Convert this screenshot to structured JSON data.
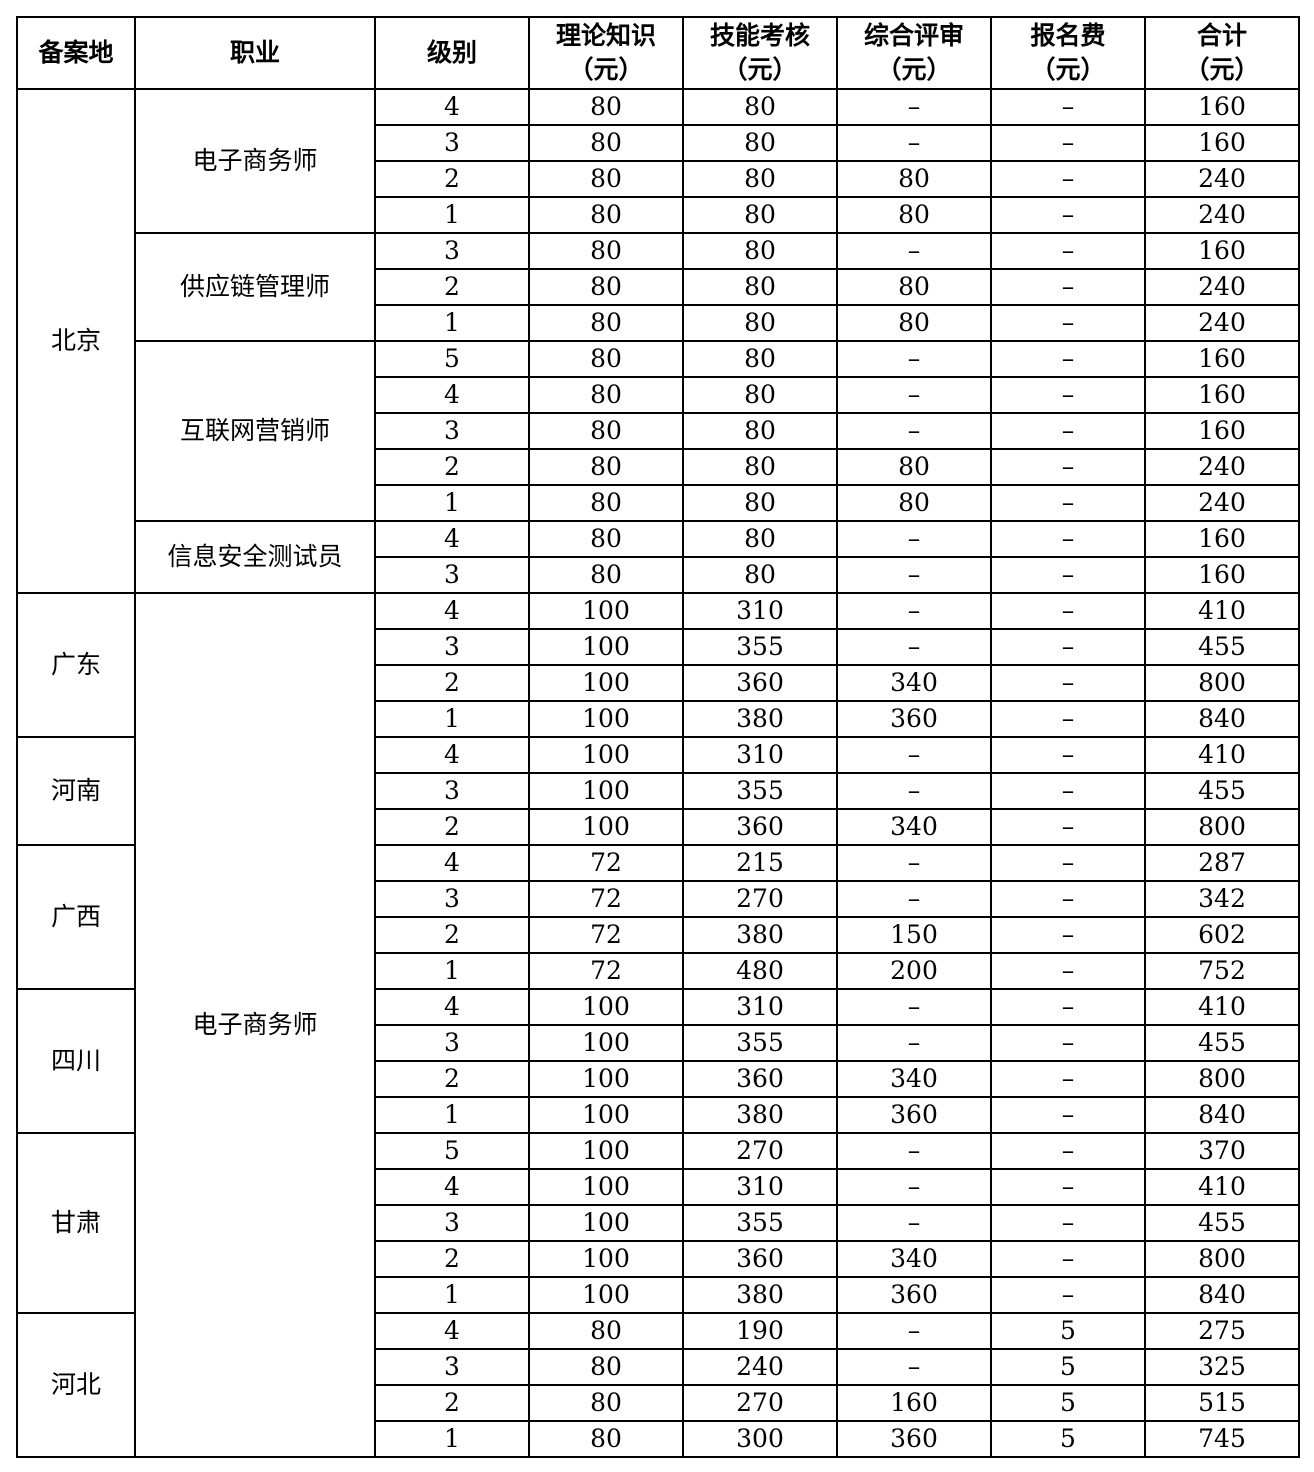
{
  "table": {
    "headers": [
      [
        "备案地"
      ],
      [
        "职业"
      ],
      [
        "级别"
      ],
      [
        "理论知识",
        "（元）"
      ],
      [
        "技能考核",
        "（元）"
      ],
      [
        "综合评审",
        "（元）"
      ],
      [
        "报名费",
        "（元）"
      ],
      [
        "合计",
        "（元）"
      ]
    ],
    "rows": [
      [
        "北京",
        "电子商务师",
        "4",
        "80",
        "80",
        "–",
        "–",
        "160"
      ],
      [
        "北京",
        "电子商务师",
        "3",
        "80",
        "80",
        "–",
        "–",
        "160"
      ],
      [
        "北京",
        "电子商务师",
        "2",
        "80",
        "80",
        "80",
        "–",
        "240"
      ],
      [
        "北京",
        "电子商务师",
        "1",
        "80",
        "80",
        "80",
        "–",
        "240"
      ],
      [
        "北京",
        "供应链管理师",
        "3",
        "80",
        "80",
        "–",
        "–",
        "160"
      ],
      [
        "北京",
        "供应链管理师",
        "2",
        "80",
        "80",
        "80",
        "–",
        "240"
      ],
      [
        "北京",
        "供应链管理师",
        "1",
        "80",
        "80",
        "80",
        "–",
        "240"
      ],
      [
        "北京",
        "互联网营销师",
        "5",
        "80",
        "80",
        "–",
        "–",
        "160"
      ],
      [
        "北京",
        "互联网营销师",
        "4",
        "80",
        "80",
        "–",
        "–",
        "160"
      ],
      [
        "北京",
        "互联网营销师",
        "3",
        "80",
        "80",
        "–",
        "–",
        "160"
      ],
      [
        "北京",
        "互联网营销师",
        "2",
        "80",
        "80",
        "80",
        "–",
        "240"
      ],
      [
        "北京",
        "互联网营销师",
        "1",
        "80",
        "80",
        "80",
        "–",
        "240"
      ],
      [
        "北京",
        "信息安全测试员",
        "4",
        "80",
        "80",
        "–",
        "–",
        "160"
      ],
      [
        "北京",
        "信息安全测试员",
        "3",
        "80",
        "80",
        "–",
        "–",
        "160"
      ],
      [
        "广东",
        "电子商务师",
        "4",
        "100",
        "310",
        "–",
        "–",
        "410"
      ],
      [
        "广东",
        "电子商务师",
        "3",
        "100",
        "355",
        "–",
        "–",
        "455"
      ],
      [
        "广东",
        "电子商务师",
        "2",
        "100",
        "360",
        "340",
        "–",
        "800"
      ],
      [
        "广东",
        "电子商务师",
        "1",
        "100",
        "380",
        "360",
        "–",
        "840"
      ],
      [
        "河南",
        "电子商务师",
        "4",
        "100",
        "310",
        "–",
        "–",
        "410"
      ],
      [
        "河南",
        "电子商务师",
        "3",
        "100",
        "355",
        "–",
        "–",
        "455"
      ],
      [
        "河南",
        "电子商务师",
        "2",
        "100",
        "360",
        "340",
        "–",
        "800"
      ],
      [
        "广西",
        "电子商务师",
        "4",
        "72",
        "215",
        "–",
        "–",
        "287"
      ],
      [
        "广西",
        "电子商务师",
        "3",
        "72",
        "270",
        "–",
        "–",
        "342"
      ],
      [
        "广西",
        "电子商务师",
        "2",
        "72",
        "380",
        "150",
        "–",
        "602"
      ],
      [
        "广西",
        "电子商务师",
        "1",
        "72",
        "480",
        "200",
        "–",
        "752"
      ],
      [
        "四川",
        "电子商务师",
        "4",
        "100",
        "310",
        "–",
        "–",
        "410"
      ],
      [
        "四川",
        "电子商务师",
        "3",
        "100",
        "355",
        "–",
        "–",
        "455"
      ],
      [
        "四川",
        "电子商务师",
        "2",
        "100",
        "360",
        "340",
        "–",
        "800"
      ],
      [
        "四川",
        "电子商务师",
        "1",
        "100",
        "380",
        "360",
        "–",
        "840"
      ],
      [
        "甘肃",
        "电子商务师",
        "5",
        "100",
        "270",
        "–",
        "–",
        "370"
      ],
      [
        "甘肃",
        "电子商务师",
        "4",
        "100",
        "310",
        "–",
        "–",
        "410"
      ],
      [
        "甘肃",
        "电子商务师",
        "3",
        "100",
        "355",
        "–",
        "–",
        "455"
      ],
      [
        "甘肃",
        "电子商务师",
        "2",
        "100",
        "360",
        "340",
        "–",
        "800"
      ],
      [
        "甘肃",
        "电子商务师",
        "1",
        "100",
        "380",
        "360",
        "–",
        "840"
      ],
      [
        "河北",
        "电子商务师",
        "4",
        "80",
        "190",
        "–",
        "5",
        "275"
      ],
      [
        "河北",
        "电子商务师",
        "3",
        "80",
        "240",
        "–",
        "5",
        "325"
      ],
      [
        "河北",
        "电子商务师",
        "2",
        "80",
        "270",
        "160",
        "5",
        "515"
      ],
      [
        "河北",
        "电子商务师",
        "1",
        "80",
        "300",
        "360",
        "5",
        "745"
      ]
    ]
  }
}
